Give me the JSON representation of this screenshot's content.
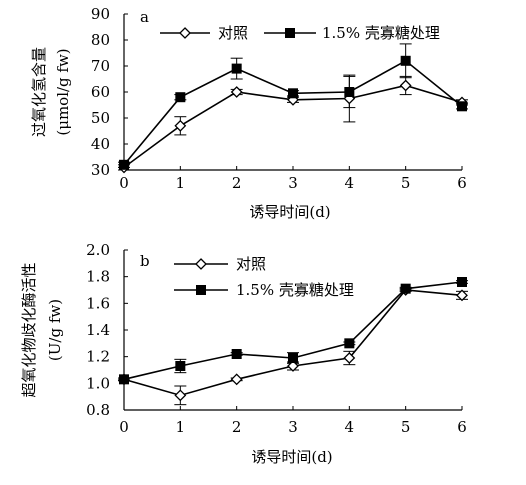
{
  "chart_data": [
    {
      "type": "line",
      "panel_label": "a",
      "x": [
        0,
        1,
        2,
        3,
        4,
        5,
        6
      ],
      "xlabel": "诱导时间(d)",
      "ylabel_line1": "过氧化氢含量",
      "ylabel_line2": "(μmol/g fw)",
      "ylim": [
        30,
        90
      ],
      "yticks": [
        "30",
        "40",
        "50",
        "60",
        "70",
        "80",
        "90"
      ],
      "xticks": [
        "0",
        "1",
        "2",
        "3",
        "4",
        "5",
        "6"
      ],
      "legend_position": "top",
      "series": [
        {
          "name": "对照",
          "marker": "open-diamond",
          "values": [
            31.0,
            47.0,
            60.0,
            57.0,
            57.5,
            62.5,
            56.0
          ],
          "errors": [
            1.0,
            3.5,
            1.0,
            1.0,
            9.0,
            3.5,
            1.0
          ]
        },
        {
          "name": "1.5% 壳寡糖处理",
          "marker": "filled-square",
          "values": [
            32.0,
            58.0,
            69.0,
            59.5,
            60.0,
            72.0,
            54.5
          ],
          "errors": [
            1.0,
            1.0,
            4.0,
            1.0,
            6.0,
            6.5,
            1.0
          ]
        }
      ]
    },
    {
      "type": "line",
      "panel_label": "b",
      "x": [
        0,
        1,
        2,
        3,
        4,
        5,
        6
      ],
      "xlabel": "诱导时间(d)",
      "ylabel_line1": "超氧化物歧化酶活性",
      "ylabel_line2": "(U/g fw)",
      "ylim": [
        0.8,
        2.0
      ],
      "yticks": [
        "0.8",
        "1.0",
        "1.2",
        "1.4",
        "1.6",
        "1.8",
        "2.0"
      ],
      "xticks": [
        "0",
        "1",
        "2",
        "3",
        "4",
        "5",
        "6"
      ],
      "legend_position": "top-left",
      "series": [
        {
          "name": "对照",
          "marker": "open-diamond",
          "values": [
            1.03,
            0.91,
            1.03,
            1.13,
            1.19,
            1.7,
            1.66
          ],
          "errors": [
            0.01,
            0.07,
            0.01,
            0.03,
            0.05,
            0.01,
            0.03
          ]
        },
        {
          "name": "1.5% 壳寡糖处理",
          "marker": "filled-square",
          "values": [
            1.03,
            1.13,
            1.22,
            1.19,
            1.3,
            1.71,
            1.76
          ],
          "errors": [
            0.01,
            0.05,
            0.01,
            0.04,
            0.01,
            0.01,
            0.01
          ]
        }
      ]
    }
  ]
}
